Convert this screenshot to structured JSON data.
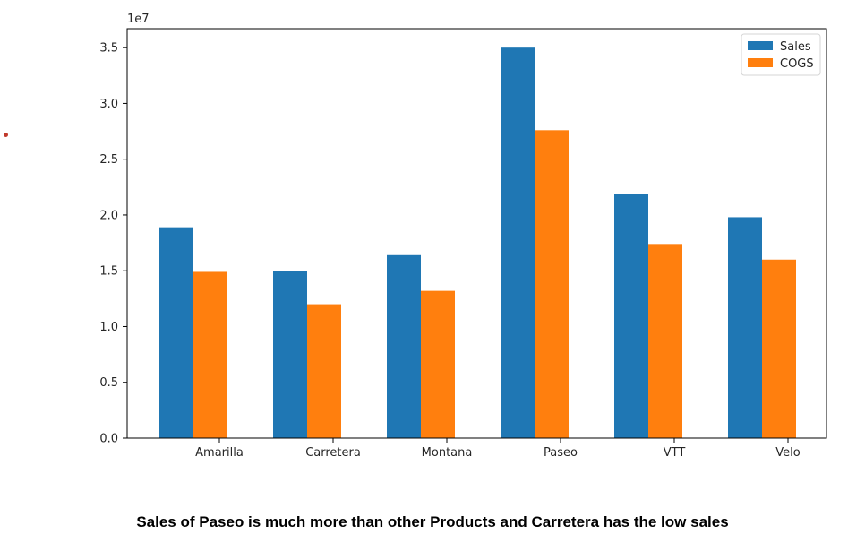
{
  "caption": "Sales of Paseo is much more than other Products and Carretera has the low sales",
  "chart_data": {
    "type": "bar",
    "categories": [
      "Amarilla",
      "Carretera",
      "Montana",
      "Paseo",
      "VTT",
      "Velo"
    ],
    "series": [
      {
        "name": "Sales",
        "color": "#1f77b4",
        "values": [
          18900000.0,
          15000000.0,
          16400000.0,
          35000000.0,
          21900000.0,
          19800000.0
        ]
      },
      {
        "name": "COGS",
        "color": "#ff7f0e",
        "values": [
          14900000.0,
          12000000.0,
          13200000.0,
          27600000.0,
          17400000.0,
          16000000.0
        ]
      }
    ],
    "ylim": [
      0,
      36700000.0
    ],
    "yticks": [
      "0.0",
      "0.5",
      "1.0",
      "1.5",
      "2.0",
      "2.5",
      "3.0",
      "3.5"
    ],
    "y_tick_values": [
      0,
      5000000.0,
      10000000.0,
      15000000.0,
      20000000.0,
      25000000.0,
      30000000.0,
      35000000.0
    ],
    "y_offset_label": "1e7",
    "title": "",
    "xlabel": "",
    "ylabel": "",
    "grid": false,
    "legend_position": "top-right"
  }
}
